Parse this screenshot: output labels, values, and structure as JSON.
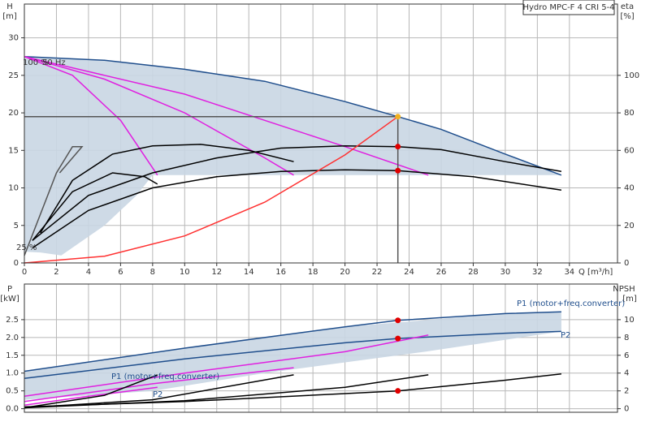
{
  "chart_data": [
    {
      "type": "line",
      "title": "Hydro MPC-F 4 CRI 5-4",
      "ylabel": "H",
      "yunit": "[m]",
      "y2label": "eta",
      "y2unit": "[%]",
      "xlabel": "Q [m³/h]",
      "xlim": [
        0,
        37
      ],
      "ylim": [
        0,
        34.5
      ],
      "y2lim": [
        0,
        138
      ],
      "xticks": [
        0,
        2,
        4,
        6,
        8,
        10,
        12,
        14,
        16,
        18,
        20,
        22,
        24,
        26,
        28,
        30,
        32,
        34
      ],
      "yticks": [
        0,
        5,
        10,
        15,
        20,
        25,
        30
      ],
      "y2ticks": [
        0,
        20,
        40,
        60,
        80,
        100
      ],
      "grid": true,
      "annotations": [
        "100 %",
        "50 Hz",
        "25 %"
      ],
      "series": [
        {
          "color": "#c9d6e3",
          "fill": true,
          "x": [
            0,
            5,
            10,
            15,
            20,
            23.3,
            26,
            30,
            33.5,
            33.5,
            8,
            7,
            5,
            2.3,
            1,
            0
          ],
          "values": [
            27.5,
            27,
            25.8,
            24.2,
            21.5,
            19.5,
            17.8,
            14.5,
            11.7,
            11.7,
            11.7,
            9,
            5,
            1,
            1.4,
            1.5
          ]
        },
        {
          "color": "#1f4e8c",
          "x": [
            0,
            5,
            10,
            15,
            20,
            23.3,
            26,
            30,
            33.5
          ],
          "values": [
            27.5,
            27,
            25.8,
            24.2,
            21.5,
            19.5,
            17.8,
            14.5,
            11.7
          ]
        },
        {
          "color": "#e020e0",
          "x": [
            0,
            3,
            6,
            8.3
          ],
          "values": [
            27.5,
            25,
            19,
            11.7
          ]
        },
        {
          "color": "#e020e0",
          "x": [
            0,
            5,
            10,
            15,
            16.8
          ],
          "values": [
            27.5,
            24.5,
            20,
            14,
            11.7
          ]
        },
        {
          "color": "#e020e0",
          "x": [
            0,
            10,
            20,
            25.2
          ],
          "values": [
            27.5,
            22.5,
            15.5,
            11.7
          ]
        },
        {
          "color": "#000000",
          "x": [
            0.5,
            4,
            8,
            12,
            16,
            20,
            23.3,
            26,
            30,
            33.5
          ],
          "values": [
            3,
            9,
            12,
            14,
            15.3,
            15.6,
            15.5,
            15.1,
            13.5,
            12.2
          ]
        },
        {
          "color": "#000000",
          "x": [
            0.5,
            4,
            8,
            12,
            16,
            20,
            23.3,
            28,
            33.5
          ],
          "values": [
            2,
            7,
            10,
            11.5,
            12.2,
            12.4,
            12.3,
            11.5,
            9.7
          ]
        },
        {
          "color": "#000000",
          "x": [
            1,
            3,
            5.5,
            8,
            11,
            14,
            16.8
          ],
          "values": [
            4,
            11,
            14.5,
            15.6,
            15.8,
            15,
            13.5
          ]
        },
        {
          "color": "#000000",
          "x": [
            0.5,
            3,
            5.5,
            7.5,
            8.3
          ],
          "values": [
            3,
            9.5,
            12,
            11.5,
            10.5
          ]
        },
        {
          "color": "#555555",
          "x": [
            0,
            2,
            3,
            3.6,
            2.2
          ],
          "values": [
            1,
            12,
            15.5,
            15.5,
            12
          ]
        },
        {
          "color": "#ff3030",
          "x": [
            0,
            5,
            10,
            15,
            20,
            23.3
          ],
          "values": [
            0,
            0.9,
            3.6,
            8.1,
            14.4,
            19.5
          ]
        },
        {
          "color": "#555555",
          "x": [
            0,
            23.3
          ],
          "values": [
            19.5,
            19.5
          ]
        },
        {
          "color": "#555555",
          "x": [
            23.3,
            23.3
          ],
          "values": [
            19.5,
            0
          ]
        }
      ],
      "markers": [
        {
          "color": "#f0b020",
          "x": 23.3,
          "y": 19.5
        },
        {
          "color": "#e00000",
          "x": 23.3,
          "y": 15.5
        },
        {
          "color": "#e00000",
          "x": 23.3,
          "y": 12.3
        }
      ]
    },
    {
      "type": "line",
      "ylabel": "P",
      "yunit": "[kW]",
      "y2label": "NPSH",
      "y2unit": "[m]",
      "xlim": [
        0,
        37
      ],
      "ylim": [
        -0.1,
        3.5
      ],
      "y2lim": [
        -0.4,
        14
      ],
      "yticks": [
        {
          "value": 0,
          "label": "0.0"
        },
        0.5,
        {
          "value": 1,
          "label": "1.0"
        },
        1.5,
        {
          "value": 2,
          "label": "2.0"
        },
        2.5
      ],
      "y2ticks": [
        0,
        2,
        4,
        6,
        8,
        10
      ],
      "grid": true,
      "annotations": [
        "P1 (motor+freq.converter)",
        "P2",
        "P1 (motor+freq.converter)",
        "P2"
      ],
      "series": [
        {
          "color": "#c9d6e3",
          "fill": true,
          "x": [
            0,
            10,
            20,
            30,
            33.5,
            33.5,
            25,
            15,
            8,
            0
          ],
          "values": [
            1.05,
            1.7,
            2.3,
            2.67,
            2.72,
            2.17,
            1.6,
            1.0,
            0.5,
            0.25
          ]
        },
        {
          "color": "#1f4e8c",
          "x": [
            0,
            10,
            20,
            23.3,
            30,
            33.5
          ],
          "values": [
            1.05,
            1.7,
            2.3,
            2.48,
            2.67,
            2.72
          ]
        },
        {
          "color": "#1f4e8c",
          "x": [
            0,
            10,
            20,
            23.3,
            30,
            33.5
          ],
          "values": [
            0.85,
            1.4,
            1.85,
            1.97,
            2.12,
            2.17
          ]
        },
        {
          "color": "#e020e0",
          "x": [
            0,
            10,
            20,
            25.2
          ],
          "values": [
            0.35,
            1.0,
            1.6,
            2.07
          ]
        },
        {
          "color": "#e020e0",
          "x": [
            0,
            8,
            16.8
          ],
          "values": [
            0.2,
            0.7,
            1.15
          ]
        },
        {
          "color": "#e020e0",
          "x": [
            0,
            4,
            8.3
          ],
          "values": [
            0.1,
            0.35,
            0.6
          ]
        },
        {
          "color": "#000000",
          "axis": "y2",
          "x": [
            0,
            10,
            20,
            23.3,
            30,
            33.5
          ],
          "values": [
            0.2,
            0.8,
            1.7,
            2,
            3.2,
            3.9
          ]
        },
        {
          "color": "#000000",
          "axis": "y2",
          "x": [
            0,
            10,
            20,
            25.2
          ],
          "values": [
            0.1,
            0.9,
            2.4,
            3.8
          ]
        },
        {
          "color": "#000000",
          "axis": "y2",
          "x": [
            0,
            8,
            16.8
          ],
          "values": [
            0.1,
            1.0,
            3.8
          ]
        },
        {
          "color": "#000000",
          "axis": "y2",
          "x": [
            0,
            5,
            8.3
          ],
          "values": [
            0.1,
            1.5,
            3.8
          ]
        }
      ],
      "markers": [
        {
          "color": "#e00000",
          "x": 23.3,
          "y": 2.48
        },
        {
          "color": "#e00000",
          "x": 23.3,
          "y": 1.97
        },
        {
          "color": "#e00000",
          "x": 23.3,
          "y": 2,
          "axis": "y2"
        }
      ]
    }
  ]
}
